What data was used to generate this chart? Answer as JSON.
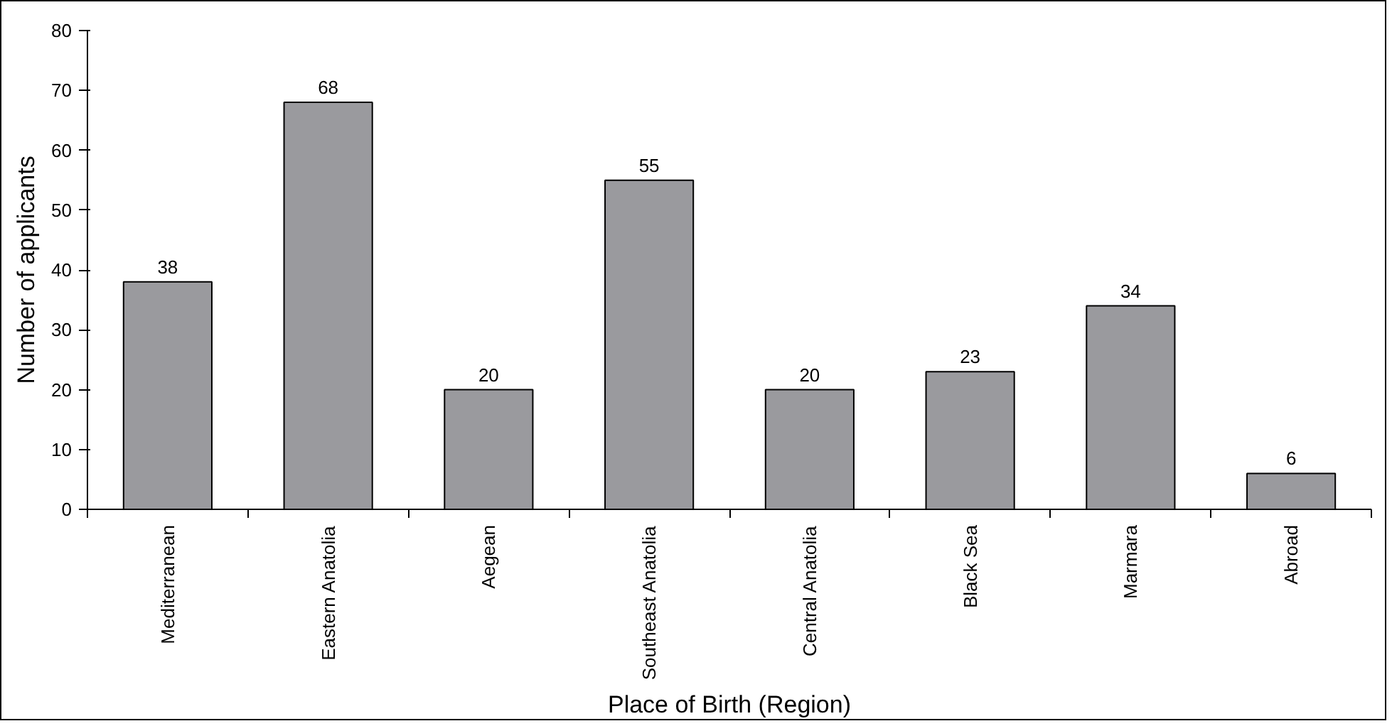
{
  "chart_data": {
    "type": "bar",
    "xlabel": "Place of Birth (Region)",
    "ylabel": "Number of applicants",
    "categories": [
      "Mediterranean",
      "Eastern Anatolia",
      "Aegean",
      "Southeast Anatolia",
      "Central Anatolia",
      "Black Sea",
      "Marmara",
      "Abroad"
    ],
    "values": [
      38,
      68,
      20,
      55,
      20,
      23,
      34,
      6
    ],
    "color": "#9a9a9e",
    "ylim": [
      0,
      80
    ],
    "yticks": [
      0,
      10,
      20,
      30,
      40,
      50,
      60,
      70,
      80
    ],
    "data_labels": true,
    "grid": false
  }
}
